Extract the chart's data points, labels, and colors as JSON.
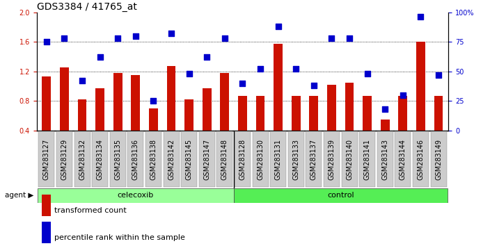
{
  "title": "GDS3384 / 41765_at",
  "categories": [
    "GSM283127",
    "GSM283129",
    "GSM283132",
    "GSM283134",
    "GSM283135",
    "GSM283136",
    "GSM283138",
    "GSM283142",
    "GSM283145",
    "GSM283147",
    "GSM283148",
    "GSM283128",
    "GSM283130",
    "GSM283131",
    "GSM283133",
    "GSM283137",
    "GSM283139",
    "GSM283140",
    "GSM283141",
    "GSM283143",
    "GSM283144",
    "GSM283146",
    "GSM283149"
  ],
  "bar_values": [
    1.13,
    1.25,
    0.82,
    0.97,
    1.18,
    1.15,
    0.7,
    1.27,
    0.82,
    0.97,
    1.18,
    0.87,
    0.87,
    1.57,
    0.87,
    0.87,
    1.02,
    1.05,
    0.87,
    0.55,
    0.87,
    1.6,
    0.87
  ],
  "percentile_values": [
    75,
    78,
    42,
    62,
    78,
    80,
    25,
    82,
    48,
    62,
    78,
    40,
    52,
    88,
    52,
    38,
    78,
    78,
    48,
    18,
    30,
    96,
    47
  ],
  "celecoxib_count": 11,
  "control_count": 12,
  "ylim_left": [
    0.4,
    2.0
  ],
  "ylim_right": [
    0,
    100
  ],
  "yticks_left": [
    0.4,
    0.8,
    1.2,
    1.6,
    2.0
  ],
  "yticks_right": [
    0,
    25,
    50,
    75,
    100
  ],
  "bar_color": "#CC1100",
  "square_color": "#0000CC",
  "celecoxib_color": "#99FF99",
  "control_color": "#55EE55",
  "xtick_bg_color": "#CCCCCC",
  "background_color": "#FFFFFF",
  "title_fontsize": 10,
  "tick_fontsize": 7,
  "legend_fontsize": 8,
  "band_fontsize": 8
}
